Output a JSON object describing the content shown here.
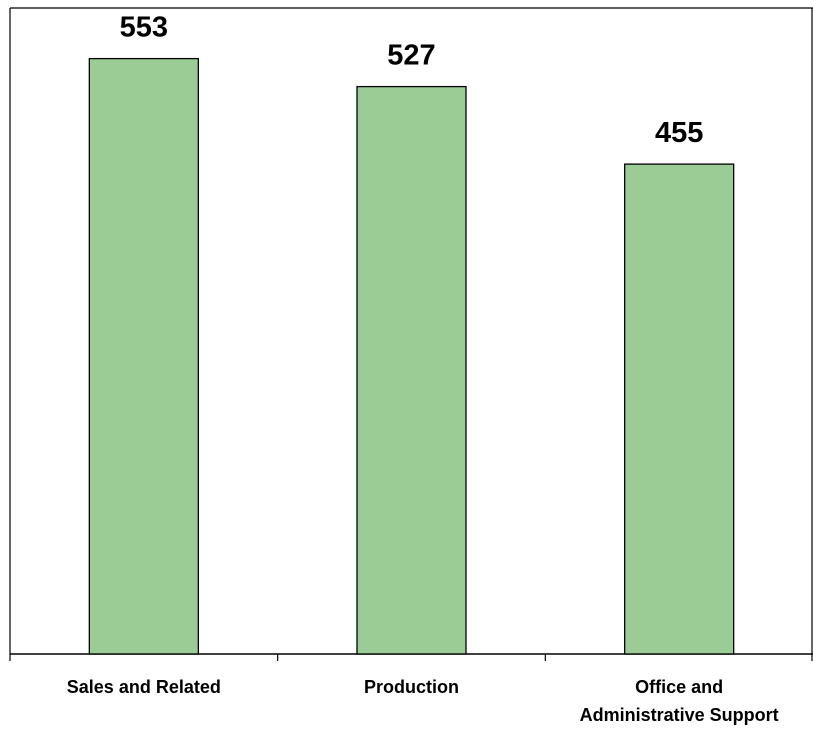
{
  "chart_data": {
    "type": "bar",
    "title": "",
    "xlabel": "",
    "ylabel": "",
    "categories": [
      [
        "Sales and Related"
      ],
      [
        "Production"
      ],
      [
        "Office and",
        "Administrative Support"
      ]
    ],
    "values": [
      553,
      527,
      455
    ],
    "ylim": [
      0,
      600
    ],
    "grid": false,
    "legend": "none",
    "colors": {
      "bar_fill": "#9ccc96",
      "bar_stroke": "#000000",
      "axis": "#000000"
    }
  }
}
